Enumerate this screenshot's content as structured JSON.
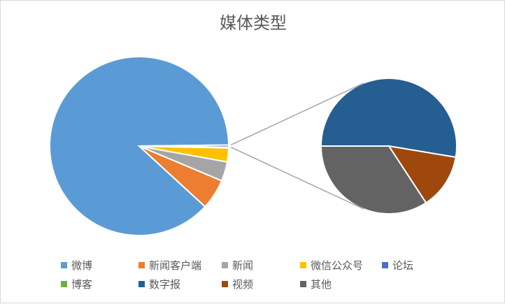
{
  "chart_data": {
    "type": "pie-of-pie",
    "title": "媒体类型",
    "categories": [
      "微博",
      "新闻客户端",
      "新闻",
      "微信公众号",
      "论坛",
      "博客",
      "数字报",
      "视频",
      "其他"
    ],
    "values": [
      88.0,
      5.5,
      3.5,
      2.5,
      0.15,
      0.0,
      0.2,
      0.05,
      0.13
    ],
    "colors": [
      "#5b9bd5",
      "#ed7d31",
      "#a5a5a5",
      "#ffc000",
      "#4472c4",
      "#70ad47",
      "#255e91",
      "#9e480e",
      "#636363"
    ],
    "secondary_categories": [
      "数字报",
      "视频",
      "其他"
    ],
    "legend_position": "bottom"
  }
}
